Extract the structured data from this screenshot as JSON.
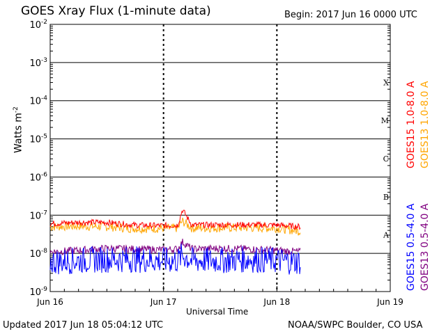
{
  "header": {
    "title": "GOES Xray Flux (1-minute data)",
    "begin": "Begin:  2017 Jun 16 0000 UTC"
  },
  "footer": {
    "updated": "Updated 2017 Jun 18 05:04:12 UTC",
    "credit": "NOAA/SWPC Boulder, CO USA"
  },
  "y_axis": {
    "label_base": "Watts m",
    "label_exp": "-2"
  },
  "x_axis": {
    "title": "Universal Time"
  },
  "chart_data": {
    "type": "line",
    "title": "GOES Xray Flux (1-minute data)",
    "xlabel": "Universal Time",
    "ylabel": "Watts m-2",
    "yscale": "log",
    "ylim": [
      1e-09,
      0.01
    ],
    "xlim": [
      "2017-06-16 00:00",
      "2017-06-19 00:00"
    ],
    "x_ticks": [
      "Jun 16",
      "Jun 17",
      "Jun 18",
      "Jun 19"
    ],
    "y_ticks": [
      {
        "value": 1e-09,
        "base": "10",
        "exp": "-9"
      },
      {
        "value": 1e-08,
        "base": "10",
        "exp": "-8"
      },
      {
        "value": 1e-07,
        "base": "10",
        "exp": "-7"
      },
      {
        "value": 1e-06,
        "base": "10",
        "exp": "-6"
      },
      {
        "value": 1e-05,
        "base": "10",
        "exp": "-5"
      },
      {
        "value": 0.0001,
        "base": "10",
        "exp": "-4"
      },
      {
        "value": 0.001,
        "base": "10",
        "exp": "-3"
      },
      {
        "value": 0.01,
        "base": "10",
        "exp": "-2"
      }
    ],
    "flare_classes": [
      {
        "label": "A",
        "value": 1e-08
      },
      {
        "label": "B",
        "value": 1e-07
      },
      {
        "label": "C",
        "value": 1e-06
      },
      {
        "label": "M",
        "value": 1e-05
      },
      {
        "label": "X",
        "value": 0.0001
      }
    ],
    "grid": true,
    "legend_position": "right",
    "series": [
      {
        "name": "GOES15 1.0-8.0 A",
        "color": "#ff0000",
        "x": [
          "2017-06-16 00:00",
          "2017-06-16 06:00",
          "2017-06-16 12:00",
          "2017-06-16 18:00",
          "2017-06-17 00:00",
          "2017-06-17 03:00",
          "2017-06-17 04:00",
          "2017-06-17 06:00",
          "2017-06-17 12:00",
          "2017-06-17 18:00",
          "2017-06-18 00:00",
          "2017-06-18 05:00"
        ],
        "y": [
          6e-08,
          6.5e-08,
          6.5e-08,
          5.5e-08,
          5.3e-08,
          5.5e-08,
          1.4e-07,
          5.5e-08,
          5.6e-08,
          5.6e-08,
          5.5e-08,
          5e-08
        ]
      },
      {
        "name": "GOES13 1.0-8.0 A",
        "color": "#ffa500",
        "x": [
          "2017-06-16 00:00",
          "2017-06-16 06:00",
          "2017-06-16 12:00",
          "2017-06-16 18:00",
          "2017-06-17 00:00",
          "2017-06-17 03:00",
          "2017-06-17 04:00",
          "2017-06-17 06:00",
          "2017-06-17 12:00",
          "2017-06-17 18:00",
          "2017-06-18 00:00",
          "2017-06-18 05:00"
        ],
        "y": [
          5e-08,
          5.2e-08,
          5e-08,
          4.5e-08,
          4.5e-08,
          4.6e-08,
          7e-08,
          4.6e-08,
          4.7e-08,
          4.7e-08,
          4.6e-08,
          3.8e-08
        ]
      },
      {
        "name": "GOES15 0.5-4.0 A",
        "color": "#0000ff",
        "x": [
          "2017-06-16 00:00",
          "2017-06-16 06:00",
          "2017-06-16 12:00",
          "2017-06-16 18:00",
          "2017-06-17 00:00",
          "2017-06-17 03:00",
          "2017-06-17 04:00",
          "2017-06-17 06:00",
          "2017-06-17 12:00",
          "2017-06-17 18:00",
          "2017-06-18 00:00",
          "2017-06-18 05:00"
        ],
        "y": [
          6e-09,
          6.5e-09,
          7e-09,
          7e-09,
          6.5e-09,
          6.5e-09,
          9e-09,
          6.5e-09,
          6.5e-09,
          7e-09,
          6.5e-09,
          6e-09
        ]
      },
      {
        "name": "GOES13 0.5-4.0 A",
        "color": "#800080",
        "x": [
          "2017-06-16 00:00",
          "2017-06-16 06:00",
          "2017-06-16 12:00",
          "2017-06-16 18:00",
          "2017-06-17 00:00",
          "2017-06-17 03:00",
          "2017-06-17 04:00",
          "2017-06-17 06:00",
          "2017-06-17 12:00",
          "2017-06-17 18:00",
          "2017-06-18 00:00",
          "2017-06-18 05:00"
        ],
        "y": [
          1.1e-08,
          1.2e-08,
          1.35e-08,
          1.3e-08,
          1.25e-08,
          1.3e-08,
          2e-08,
          1.3e-08,
          1.35e-08,
          1.3e-08,
          1.2e-08,
          1.1e-08
        ]
      }
    ]
  }
}
